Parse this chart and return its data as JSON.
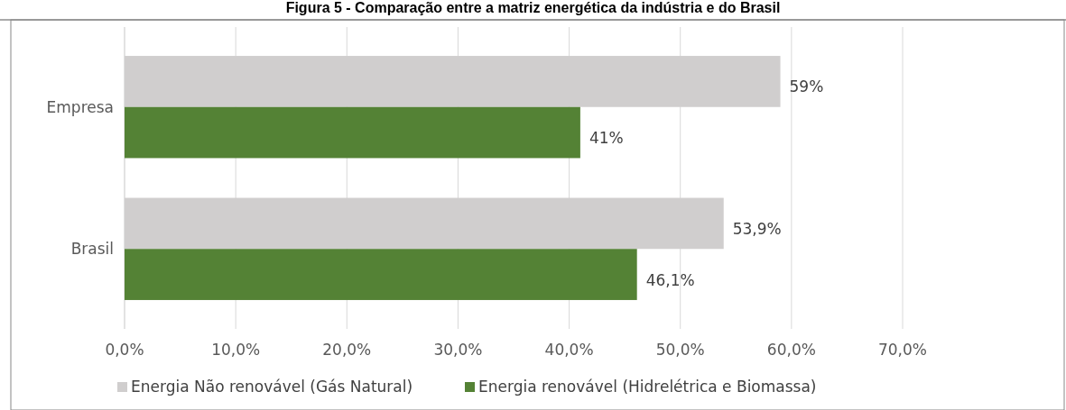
{
  "chart_data": {
    "type": "bar",
    "orientation": "horizontal",
    "title": "Figura 5 - Comparação entre a matriz energética da indústria e do Brasil",
    "categories": [
      "Empresa",
      "Brasil"
    ],
    "series": [
      {
        "name": "Energia Não renovável (Gás Natural)",
        "color": "#d0cece",
        "values": [
          59,
          53.9
        ],
        "value_labels": [
          "59%",
          "53,9%"
        ]
      },
      {
        "name": "Energia renovável (Hidrelétrica e Biomassa)",
        "color": "#548235",
        "values": [
          41,
          46.1
        ],
        "value_labels": [
          "41%",
          "46,1%"
        ]
      }
    ],
    "xlim": [
      0,
      70
    ],
    "xticks": [
      {
        "value": 0,
        "label": "0,0%"
      },
      {
        "value": 10,
        "label": "10,0%"
      },
      {
        "value": 20,
        "label": "20,0%"
      },
      {
        "value": 30,
        "label": "30,0%"
      },
      {
        "value": 40,
        "label": "40,0%"
      },
      {
        "value": 50,
        "label": "50,0%"
      },
      {
        "value": 60,
        "label": "60,0%"
      },
      {
        "value": 70,
        "label": "70,0%"
      }
    ],
    "grid": "x",
    "legend": "bottom"
  }
}
